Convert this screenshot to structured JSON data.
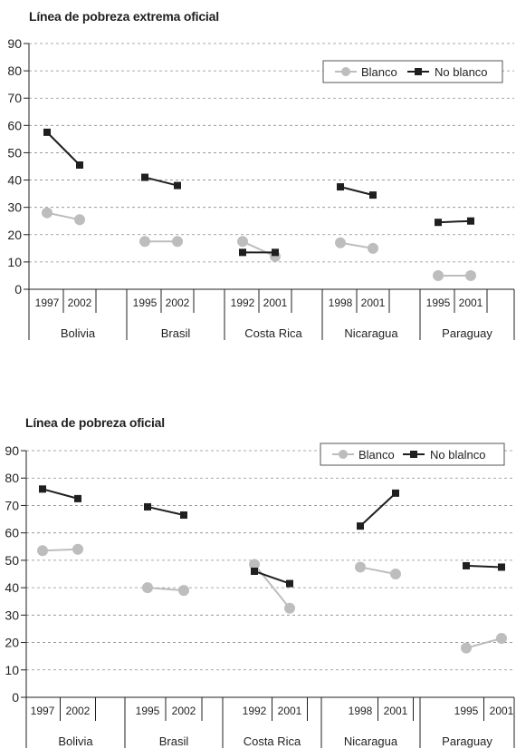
{
  "chart_data": [
    {
      "type": "line",
      "title": "Línea de pobreza extrema oficial",
      "ylim": [
        0,
        90
      ],
      "yticks": [
        0,
        10,
        20,
        30,
        40,
        50,
        60,
        70,
        80,
        90
      ],
      "grid": "horizontal dashed",
      "legend_position": "top-right",
      "colors": {
        "Blanco": "#bdbdbd",
        "No blanco": "#1f1f1f"
      },
      "groups": [
        {
          "country": "Bolivia",
          "years": [
            "1997",
            "2002"
          ],
          "Blanco": [
            28,
            25.5
          ],
          "No blanco": [
            57.5,
            45.5
          ]
        },
        {
          "country": "Brasil",
          "years": [
            "1995",
            "2002"
          ],
          "Blanco": [
            17.5,
            17.5
          ],
          "No blanco": [
            41,
            38
          ]
        },
        {
          "country": "Costa Rica",
          "years": [
            "1992",
            "2001"
          ],
          "Blanco": [
            17.5,
            12
          ],
          "No blanco": [
            13.5,
            13.5
          ]
        },
        {
          "country": "Nicaragua",
          "years": [
            "1998",
            "2001"
          ],
          "Blanco": [
            17,
            15
          ],
          "No blanco": [
            37.5,
            34.5
          ]
        },
        {
          "country": "Paraguay",
          "years": [
            "1995",
            "2001"
          ],
          "Blanco": [
            5,
            5
          ],
          "No blanco": [
            24.5,
            25
          ]
        }
      ],
      "series": [
        {
          "name": "Blanco"
        },
        {
          "name": "No blanco"
        }
      ]
    },
    {
      "type": "line",
      "title": "Línea de pobreza oficial",
      "ylim": [
        0,
        90
      ],
      "yticks": [
        0,
        10,
        20,
        30,
        40,
        50,
        60,
        70,
        80,
        90
      ],
      "grid": "horizontal dashed",
      "legend_position": "top-right",
      "colors": {
        "Blanco": "#bdbdbd",
        "No blanco": "#1f1f1f"
      },
      "groups": [
        {
          "country": "Bolivia",
          "years": [
            "1997",
            "2002"
          ],
          "Blanco": [
            53.5,
            54
          ],
          "No blanco": [
            76,
            72.5
          ]
        },
        {
          "country": "Brasil",
          "years": [
            "1995",
            "2002"
          ],
          "Blanco": [
            40,
            39
          ],
          "No blanco": [
            69.5,
            66.5
          ]
        },
        {
          "country": "Costa Rica",
          "years": [
            "1992",
            "2001"
          ],
          "Blanco": [
            48.5,
            32.5
          ],
          "No blanco": [
            46,
            41.5
          ]
        },
        {
          "country": "Nicaragua",
          "years": [
            "1998",
            "2001"
          ],
          "Blanco": [
            47.5,
            45
          ],
          "No blanco": [
            62.5,
            74.5
          ]
        },
        {
          "country": "Paraguay",
          "years": [
            "1995",
            "2001"
          ],
          "Blanco": [
            18,
            21.5
          ],
          "No blanco": [
            48,
            47.5
          ]
        }
      ],
      "series": [
        {
          "name": "Blanco"
        },
        {
          "name": "No blalnco"
        }
      ]
    }
  ]
}
